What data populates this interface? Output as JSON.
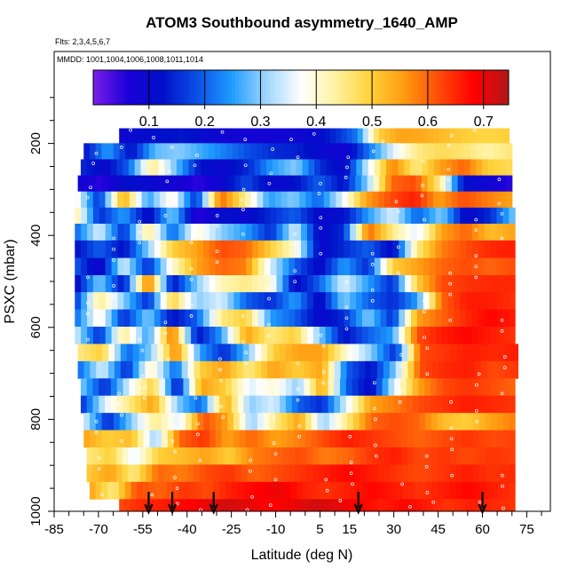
{
  "chart_data": {
    "type": "heatmap",
    "title": "ATOM3 Southbound asymmetry_1640_AMP",
    "flights_note": "Flts: 2,3,4,5,6,7",
    "dates_note": "MMDD: 1001,1004,1006,1008,1011,1014",
    "xlabel": "Latitude (deg N)",
    "ylabel": "PSXC (mbar)",
    "xlim": [
      -85,
      83
    ],
    "ylim": [
      1000,
      0
    ],
    "x_ticks": [
      -85,
      -70,
      -55,
      -40,
      -25,
      -10,
      5,
      15,
      30,
      45,
      60,
      75
    ],
    "x_tick_labels": [
      "-85",
      "-70",
      "-55",
      "-40",
      "-25",
      "-10",
      "5",
      "15",
      "30",
      "45",
      "60",
      "75"
    ],
    "y_ticks": [
      200,
      400,
      600,
      800,
      1000
    ],
    "y_tick_labels": [
      "200",
      "400",
      "600",
      "800",
      "1000"
    ],
    "colorbar": {
      "range": [
        0.0,
        0.745
      ],
      "ticks": [
        0.1,
        0.2,
        0.3,
        0.4,
        0.5,
        0.6,
        0.7
      ],
      "tick_labels": [
        "0.1",
        "0.2",
        "0.3",
        "0.4",
        "0.5",
        "0.6",
        "0.7"
      ],
      "colors": [
        "#7b1fe8",
        "#1a00d8",
        "#0010c8",
        "#0b4fe6",
        "#1e9cff",
        "#9fd6ff",
        "#ffffff",
        "#fff2a0",
        "#ffd23a",
        "#ff9a10",
        "#ff4a08",
        "#ff0000",
        "#b01818"
      ]
    },
    "arrows_latitude": [
      -53,
      -45,
      -31,
      18,
      60
    ],
    "layers": [
      {
        "pressure": 182,
        "start": -63,
        "end": 69,
        "values": [
          0.09,
          0.11,
          0.12,
          0.13,
          0.1,
          0.09,
          0.08,
          0.08,
          0.09,
          0.1,
          0.15,
          0.22,
          0.5,
          0.55,
          0.54,
          0.52,
          0.5,
          0.49,
          0.5
        ]
      },
      {
        "pressure": 217,
        "start": -75,
        "end": 70,
        "values": [
          0.12,
          0.25,
          0.12,
          0.28,
          0.3,
          0.26,
          0.22,
          0.18,
          0.15,
          0.14,
          0.1,
          0.08,
          0.22,
          0.35,
          0.45,
          0.48,
          0.46,
          0.43,
          0.46
        ]
      },
      {
        "pressure": 252,
        "start": -76,
        "end": 70,
        "values": [
          0.15,
          0.1,
          0.2,
          0.45,
          0.28,
          0.12,
          0.1,
          0.15,
          0.25,
          0.3,
          0.15,
          0.1,
          0.35,
          0.58,
          0.45,
          0.55,
          0.6,
          0.5,
          0.48
        ]
      },
      {
        "pressure": 287,
        "start": -77,
        "end": 70,
        "values": [
          0.08,
          0.05,
          0.12,
          0.1,
          0.08,
          0.05,
          0.1,
          0.18,
          0.1,
          0.12,
          0.2,
          0.12,
          0.3,
          0.6,
          0.62,
          0.45,
          0.12,
          0.08,
          0.05
        ]
      },
      {
        "pressure": 322,
        "start": -78,
        "end": 70,
        "values": [
          0.4,
          0.15,
          0.55,
          0.25,
          0.4,
          0.15,
          0.6,
          0.45,
          0.25,
          0.3,
          0.2,
          0.35,
          0.55,
          0.62,
          0.66,
          0.55,
          0.62,
          0.58,
          0.55
        ]
      },
      {
        "pressure": 357,
        "start": -78,
        "end": 71,
        "values": [
          0.45,
          0.15,
          0.25,
          0.1,
          0.3,
          0.05,
          0.12,
          0.1,
          0.15,
          0.2,
          0.1,
          0.12,
          0.25,
          0.35,
          0.2,
          0.3,
          0.1,
          0.15,
          0.3
        ]
      },
      {
        "pressure": 392,
        "start": -78,
        "end": 71,
        "values": [
          0.2,
          0.35,
          0.15,
          0.45,
          0.2,
          0.4,
          0.3,
          0.25,
          0.15,
          0.35,
          0.1,
          0.15,
          0.6,
          0.45,
          0.35,
          0.55,
          0.6,
          0.52,
          0.55
        ]
      },
      {
        "pressure": 430,
        "start": -78,
        "end": 71,
        "values": [
          0.12,
          0.2,
          0.12,
          0.3,
          0.5,
          0.55,
          0.62,
          0.6,
          0.5,
          0.4,
          0.1,
          0.15,
          0.2,
          0.1,
          0.45,
          0.58,
          0.62,
          0.65,
          0.66
        ]
      },
      {
        "pressure": 468,
        "start": -78,
        "end": 71,
        "values": [
          0.2,
          0.08,
          0.35,
          0.15,
          0.4,
          0.55,
          0.6,
          0.58,
          0.35,
          0.2,
          0.1,
          0.25,
          0.15,
          0.5,
          0.55,
          0.6,
          0.62,
          0.6,
          0.62
        ]
      },
      {
        "pressure": 505,
        "start": -78,
        "end": 71,
        "values": [
          0.1,
          0.3,
          0.12,
          0.6,
          0.12,
          0.3,
          0.42,
          0.45,
          0.4,
          0.1,
          0.2,
          0.35,
          0.25,
          0.15,
          0.5,
          0.62,
          0.64,
          0.65,
          0.65
        ]
      },
      {
        "pressure": 542,
        "start": -78,
        "end": 71,
        "values": [
          0.15,
          0.45,
          0.3,
          0.15,
          0.5,
          0.3,
          0.35,
          0.2,
          0.15,
          0.25,
          0.1,
          0.3,
          0.2,
          0.15,
          0.25,
          0.6,
          0.66,
          0.66,
          0.64
        ]
      },
      {
        "pressure": 580,
        "start": -78,
        "end": 71,
        "values": [
          0.2,
          0.4,
          0.15,
          0.3,
          0.12,
          0.2,
          0.45,
          0.5,
          0.25,
          0.2,
          0.1,
          0.15,
          0.3,
          0.15,
          0.55,
          0.6,
          0.65,
          0.68,
          0.66
        ]
      },
      {
        "pressure": 617,
        "start": -78,
        "end": 71,
        "values": [
          0.35,
          0.15,
          0.45,
          0.25,
          0.6,
          0.12,
          0.25,
          0.55,
          0.45,
          0.5,
          0.3,
          0.12,
          0.2,
          0.25,
          0.62,
          0.66,
          0.68,
          0.66,
          0.64
        ]
      },
      {
        "pressure": 655,
        "start": -77,
        "end": 72,
        "values": [
          0.45,
          0.5,
          0.2,
          0.3,
          0.58,
          0.25,
          0.15,
          0.3,
          0.5,
          0.55,
          0.55,
          0.4,
          0.3,
          0.15,
          0.62,
          0.64,
          0.66,
          0.65,
          0.66
        ]
      },
      {
        "pressure": 692,
        "start": -77,
        "end": 72,
        "values": [
          0.2,
          0.35,
          0.15,
          0.42,
          0.2,
          0.5,
          0.55,
          0.45,
          0.55,
          0.5,
          0.55,
          0.2,
          0.12,
          0.3,
          0.62,
          0.65,
          0.66,
          0.62,
          0.64
        ]
      },
      {
        "pressure": 730,
        "start": -76,
        "end": 71,
        "values": [
          0.3,
          0.15,
          0.35,
          0.5,
          0.12,
          0.55,
          0.5,
          0.35,
          0.4,
          0.3,
          0.55,
          0.2,
          0.1,
          0.35,
          0.55,
          0.62,
          0.64,
          0.62,
          0.6
        ]
      },
      {
        "pressure": 767,
        "start": -76,
        "end": 71,
        "values": [
          0.15,
          0.35,
          0.45,
          0.55,
          0.3,
          0.2,
          0.55,
          0.3,
          0.35,
          0.2,
          0.15,
          0.35,
          0.55,
          0.58,
          0.62,
          0.64,
          0.66,
          0.65,
          0.64
        ]
      },
      {
        "pressure": 805,
        "start": -75,
        "end": 71,
        "values": [
          0.35,
          0.15,
          0.3,
          0.45,
          0.35,
          0.62,
          0.55,
          0.3,
          0.45,
          0.55,
          0.3,
          0.45,
          0.6,
          0.62,
          0.6,
          0.52,
          0.5,
          0.55,
          0.58
        ]
      },
      {
        "pressure": 842,
        "start": -75,
        "end": 71,
        "values": [
          0.55,
          0.5,
          0.52,
          0.3,
          0.6,
          0.64,
          0.55,
          0.6,
          0.55,
          0.58,
          0.62,
          0.66,
          0.64,
          0.62,
          0.6,
          0.62,
          0.64,
          0.62,
          0.63
        ]
      },
      {
        "pressure": 880,
        "start": -74,
        "end": 71,
        "values": [
          0.45,
          0.5,
          0.35,
          0.5,
          0.52,
          0.55,
          0.5,
          0.58,
          0.6,
          0.62,
          0.58,
          0.6,
          0.64,
          0.66,
          0.62,
          0.64,
          0.62,
          0.64,
          0.63
        ]
      },
      {
        "pressure": 917,
        "start": -74,
        "end": 71,
        "values": [
          0.5,
          0.55,
          0.45,
          0.6,
          0.58,
          0.62,
          0.64,
          0.6,
          0.62,
          0.64,
          0.66,
          0.68,
          0.66,
          0.64,
          0.62,
          0.64,
          0.66,
          0.64,
          0.65
        ]
      },
      {
        "pressure": 955,
        "start": -73,
        "end": 71,
        "values": [
          0.55,
          0.45,
          0.62,
          0.6,
          0.64,
          0.62,
          0.66,
          0.68,
          0.7,
          0.66,
          0.64,
          0.66,
          0.68,
          0.66,
          0.64,
          0.66,
          0.68,
          0.66,
          0.64
        ]
      },
      {
        "pressure": 992,
        "start": -63,
        "end": 71,
        "values": [
          0.62,
          0.65,
          0.66,
          0.68,
          0.7,
          0.72,
          0.7,
          0.68,
          0.7,
          0.72,
          0.7,
          0.68,
          0.66,
          0.68,
          0.66,
          0.64,
          0.66,
          0.65,
          0.64
        ]
      }
    ]
  }
}
